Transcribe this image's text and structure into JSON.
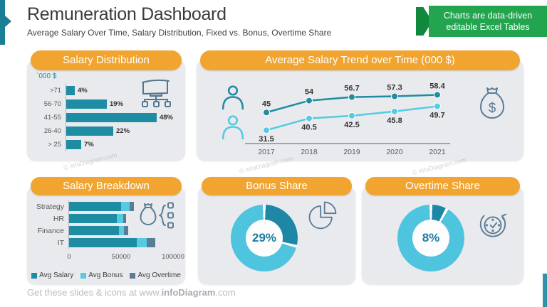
{
  "header": {
    "title": "Remuneration Dashboard",
    "subtitle": "Average Salary Over Time, Salary Distribution, Fixed vs. Bonus, Overtime Share"
  },
  "ribbon": {
    "line1": "Charts are data-driven",
    "line2": "editable Excel Tables"
  },
  "colors": {
    "accent_orange": "#F1A530",
    "teal_dark": "#1E8CA2",
    "cyan_light": "#55CAE2",
    "slate": "#5A7C96",
    "ribbon_green": "#23A550",
    "ribbon_green_dark": "#12873E",
    "panel_bg": "#E9EAED",
    "accent_left_teal": "#1A7E96"
  },
  "chart_data": [
    {
      "id": "salary_distribution",
      "type": "bar",
      "orientation": "horizontal",
      "title": "Salary Distribution",
      "unit_label": "`000 $",
      "categories": [
        ">71",
        "56-70",
        "41-55",
        "26-40",
        "> 25"
      ],
      "values": [
        4,
        19,
        48,
        22,
        7
      ],
      "value_labels": [
        "4%",
        "19%",
        "48%",
        "22%",
        "7%"
      ],
      "xlim": [
        0,
        50
      ],
      "bar_color": "#1E8CA2",
      "icon": "org-chart-board-icon"
    },
    {
      "id": "salary_trend",
      "type": "line",
      "title": "Average Salary Trend over Time (000 $)",
      "categories": [
        "2017",
        "2018",
        "2019",
        "2020",
        "2021"
      ],
      "series": [
        {
          "icon": "person-dark-icon",
          "color": "#1E8CA2",
          "values": [
            45,
            54,
            56.7,
            57.3,
            58.4
          ],
          "labels": [
            "45",
            "54",
            "56.7",
            "57.3",
            "58.4"
          ],
          "label_position": "above"
        },
        {
          "icon": "person-light-icon",
          "color": "#55CAE2",
          "values": [
            31.5,
            40.5,
            42.5,
            45.8,
            49.7
          ],
          "labels": [
            "31.5",
            "40.5",
            "42.5",
            "45.8",
            "49.7"
          ],
          "label_position": "below"
        }
      ],
      "ylim": [
        28,
        63
      ],
      "grid": false,
      "icon": "money-bag-icon"
    },
    {
      "id": "salary_breakdown",
      "type": "bar",
      "stacked": true,
      "orientation": "horizontal",
      "title": "Salary Breakdown",
      "categories": [
        "Strategy",
        "HR",
        "Finance",
        "IT"
      ],
      "series": [
        {
          "name": "Avg Salary",
          "color": "#1E8CA2",
          "values": [
            50000,
            46000,
            48000,
            65000
          ]
        },
        {
          "name": "Avg Bonus",
          "color": "#55CAE2",
          "values": [
            8000,
            6000,
            5000,
            10000
          ]
        },
        {
          "name": "Avg Overtime",
          "color": "#5A7C96",
          "values": [
            4000,
            3000,
            4000,
            8000
          ]
        }
      ],
      "x_ticks": [
        "0",
        "50000",
        "100000"
      ],
      "xlim": [
        0,
        100000
      ],
      "legend_position": "bottom",
      "icon": "money-bag-tree-icon"
    },
    {
      "id": "bonus_share",
      "type": "donut",
      "title": "Bonus Share",
      "label": "29%",
      "slices": [
        {
          "name": "share",
          "value": 29,
          "color": "#1D87A5"
        },
        {
          "name": "rest",
          "value": 71,
          "color": "#4FC4DE"
        }
      ],
      "icon": "pie-chart-icon"
    },
    {
      "id": "overtime_share",
      "type": "donut",
      "title": "Overtime Share",
      "label": "8%",
      "slices": [
        {
          "name": "share",
          "value": 8,
          "color": "#1D87A5"
        },
        {
          "name": "rest",
          "value": 92,
          "color": "#4FC4DE"
        }
      ],
      "icon": "overtime-clock-icon"
    }
  ],
  "footer": {
    "prefix": "Get these slides & icons at www.",
    "brand": "infoDiagram",
    "suffix": ".com"
  },
  "watermark": "© infoDiagram.com"
}
